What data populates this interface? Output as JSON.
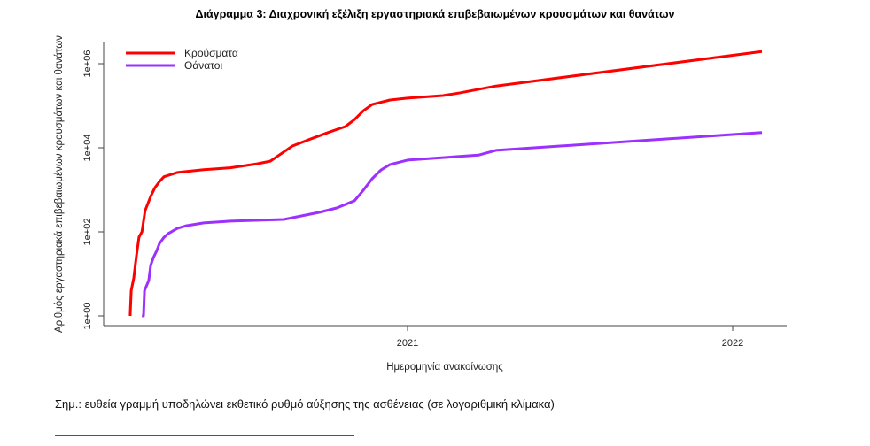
{
  "chart_data": {
    "type": "line",
    "title": "Διάγραμμα 3: Διαχρονική εξέλιξη εργαστηριακά επιβεβαιωμένων κρουσμάτων και θανάτων",
    "xlabel": "Ημερομηνία ανακοίνωσης",
    "ylabel": "Αριθμός εργαστηριακά επιβεβαιωμένων κρουσμάτων και θανάτων",
    "yscale": "log",
    "ylim": [
      1,
      1000000
    ],
    "xlim": [
      2020.07,
      2022.16
    ],
    "x_ticks": [
      {
        "value": 2021,
        "label": "2021"
      },
      {
        "value": 2022,
        "label": "2022"
      }
    ],
    "y_ticks": [
      {
        "value": 1,
        "label": "1e+00"
      },
      {
        "value": 100,
        "label": "1e+02"
      },
      {
        "value": 10000,
        "label": "1e+04"
      },
      {
        "value": 1000000,
        "label": "1e+06"
      }
    ],
    "legend_position": "top-left",
    "grid": false,
    "series": [
      {
        "name": "Κρούσματα",
        "color": "#ff0000",
        "x": [
          2020.147,
          2020.15,
          2020.158,
          2020.166,
          2020.174,
          2020.183,
          2020.193,
          2020.21,
          2020.223,
          2020.237,
          2020.251,
          2020.292,
          2020.373,
          2020.455,
          2020.537,
          2020.578,
          2020.605,
          2020.646,
          2020.7,
          2020.755,
          2020.809,
          2020.837,
          2020.864,
          2020.891,
          2020.946,
          2021.0,
          2021.109,
          2021.163,
          2021.272,
          2022.09
        ],
        "y": [
          1,
          4,
          8,
          26,
          75,
          100,
          320,
          700,
          1120,
          1580,
          2050,
          2580,
          3000,
          3340,
          4150,
          4800,
          6700,
          11000,
          16000,
          23000,
          32000,
          47000,
          76000,
          107000,
          137000,
          152000,
          175000,
          204000,
          295000,
          1950000
        ]
      },
      {
        "name": "Θάνατοι",
        "color": "#9b30ff",
        "x": [
          2020.183,
          2020.188,
          2020.191,
          2020.204,
          2020.21,
          2020.218,
          2020.229,
          2020.237,
          2020.251,
          2020.264,
          2020.292,
          2020.319,
          2020.373,
          2020.455,
          2020.619,
          2020.728,
          2020.782,
          2020.837,
          2020.864,
          2020.891,
          2020.918,
          2020.946,
          2021.0,
          2021.109,
          2021.218,
          2021.272,
          2022.09
        ],
        "y": [
          1,
          1,
          4,
          7,
          16,
          24,
          36,
          53,
          74,
          91,
          121,
          140,
          163,
          180,
          197,
          290,
          370,
          550,
          980,
          1830,
          2950,
          4000,
          5100,
          5850,
          6700,
          8700,
          23000
        ]
      }
    ]
  },
  "note": "Σημ.: ευθεία γραμμή υποδηλώνει εκθετικό ρυθμό αύξησης της ασθένειας (σε λογαριθμική κλίμακα)"
}
